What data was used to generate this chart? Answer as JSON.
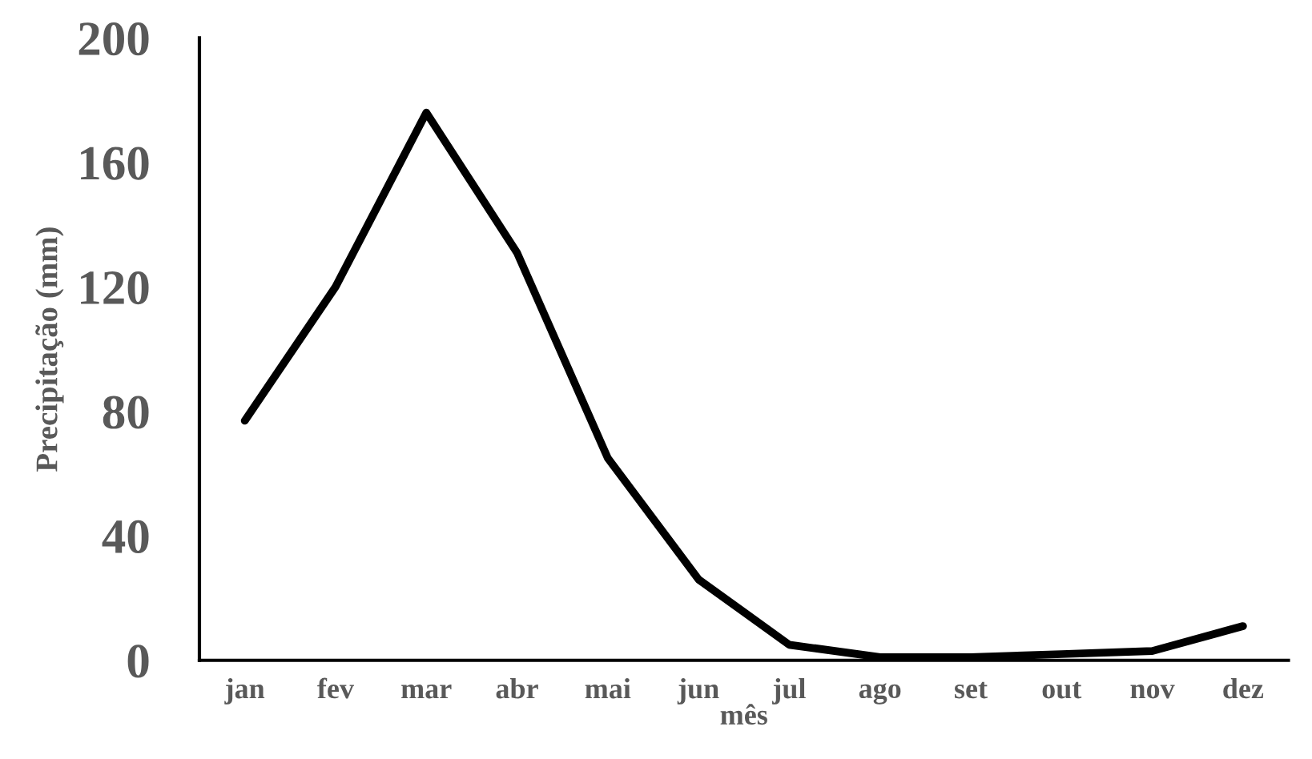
{
  "chart_data": {
    "type": "line",
    "xlabel": "mês",
    "ylabel": "Precipitação (mm)",
    "categories": [
      "jan",
      "fev",
      "mar",
      "abr",
      "mai",
      "jun",
      "jul",
      "ago",
      "set",
      "out",
      "nov",
      "dez"
    ],
    "series": [
      {
        "color": "#000000",
        "values": [
          77,
          120,
          176,
          131,
          65,
          26,
          5,
          1,
          1,
          2,
          3,
          11
        ]
      }
    ],
    "ylim": [
      0,
      200
    ],
    "yticks": [
      0,
      40,
      80,
      120,
      160,
      200
    ],
    "grid": false,
    "marker": "none",
    "line_style": "solid"
  }
}
